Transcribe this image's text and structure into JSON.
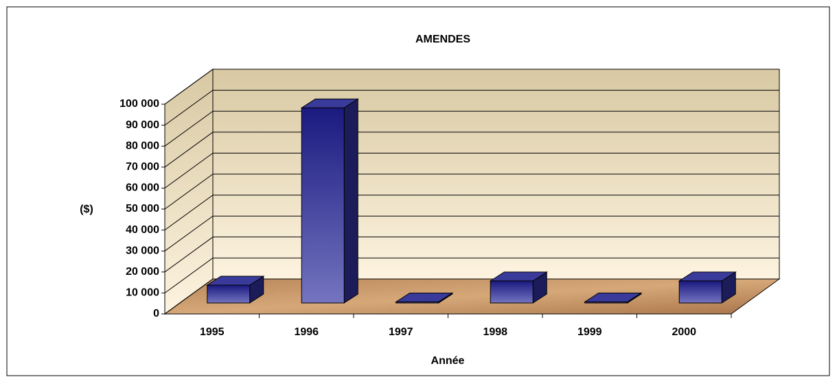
{
  "chart_data": {
    "type": "bar3d",
    "title": "AMENDES",
    "x_label": "Année",
    "y_label": "($)",
    "categories": [
      "1995",
      "1996",
      "1997",
      "1998",
      "1999",
      "2000"
    ],
    "values": [
      8500,
      93000,
      500,
      10500,
      500,
      10500
    ],
    "color": "#2b2b8f",
    "ylim": [
      0,
      100000
    ],
    "yticks": [
      {
        "value": 0,
        "label": "0"
      },
      {
        "value": 10000,
        "label": "10 000"
      },
      {
        "value": 20000,
        "label": "20 000"
      },
      {
        "value": 30000,
        "label": "30 000"
      },
      {
        "value": 40000,
        "label": "40 000"
      },
      {
        "value": 50000,
        "label": "50 000"
      },
      {
        "value": 60000,
        "label": "60 000"
      },
      {
        "value": 70000,
        "label": "70 000"
      },
      {
        "value": 80000,
        "label": "80 000"
      },
      {
        "value": 90000,
        "label": "90 000"
      },
      {
        "value": 100000,
        "label": "100 000"
      }
    ],
    "grid": true
  }
}
